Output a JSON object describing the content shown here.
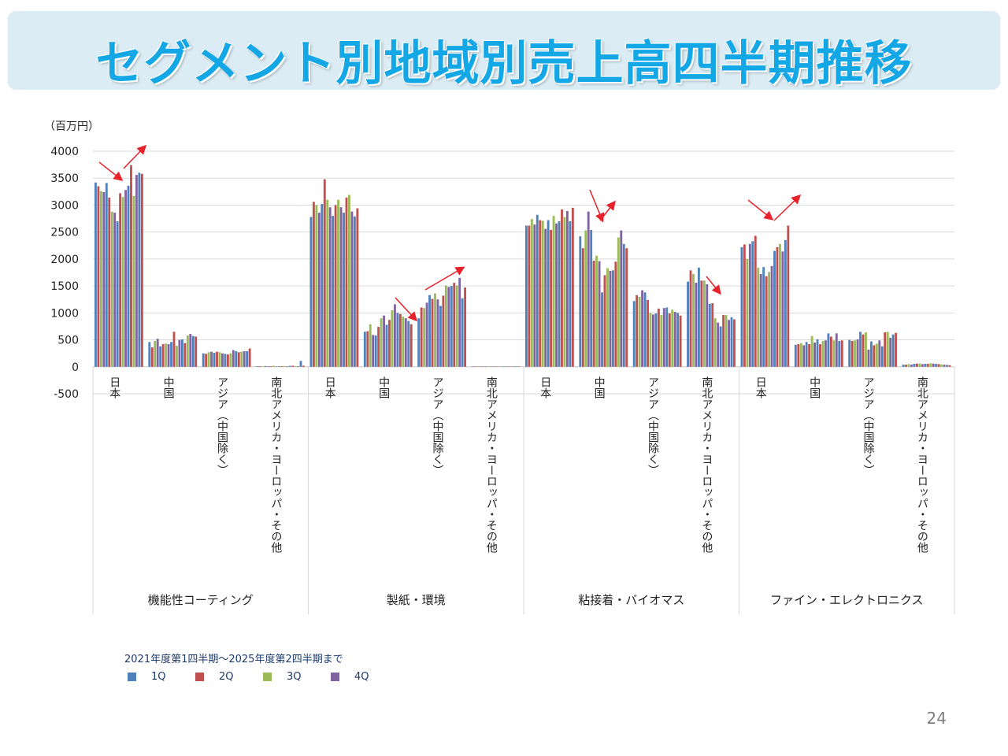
{
  "title": "セグメント別地域別売上高四半期推移",
  "unit": "（百万円）",
  "page_number": "24",
  "legend": {
    "title": "2021年度第1四半期〜2025年度第2四半期まで",
    "items": [
      {
        "label": "1Q",
        "color": "#4f81bd"
      },
      {
        "label": "2Q",
        "color": "#c0504d"
      },
      {
        "label": "3Q",
        "color": "#9bbb59"
      },
      {
        "label": "4Q",
        "color": "#8064a2"
      }
    ]
  },
  "chart_data": {
    "type": "bar",
    "title": "セグメント別地域別売上高四半期推移",
    "ylabel": "（百万円）",
    "ylim": [
      -500,
      4000
    ],
    "yticks": [
      4000,
      3500,
      3000,
      2500,
      2000,
      1500,
      1000,
      500,
      0,
      -500
    ],
    "series_names": [
      "1Q",
      "2Q",
      "3Q",
      "4Q"
    ],
    "series_colors": [
      "#4f81bd",
      "#c0504d",
      "#9bbb59",
      "#8064a2"
    ],
    "period": "FY2021 Q1 – FY2025 Q2 (18 quarters)",
    "segments": [
      {
        "name": "機能性コーティング",
        "regions": [
          {
            "name": "日本",
            "values": [
              3420,
              3350,
              3260,
              3240,
              3410,
              3140,
              2880,
              2860,
              2700,
              3220,
              3150,
              3280,
              3360,
              3740,
              3170,
              3560,
              3600,
              3580
            ]
          },
          {
            "name": "中国",
            "values": [
              460,
              360,
              480,
              520,
              380,
              420,
              430,
              420,
              460,
              650,
              390,
              500,
              510,
              440,
              580,
              610,
              570,
              560
            ]
          },
          {
            "name": "アジア（中国除く）",
            "values": [
              250,
              240,
              270,
              280,
              260,
              280,
              270,
              250,
              240,
              230,
              250,
              310,
              290,
              270,
              280,
              290,
              290,
              340
            ]
          },
          {
            "name": "南北アメリカ・ヨーロッパ・その他",
            "values": [
              10,
              12,
              8,
              15,
              10,
              12,
              20,
              8,
              10,
              12,
              15,
              10,
              18,
              20,
              15,
              12,
              110,
              20
            ]
          }
        ]
      },
      {
        "name": "製紙・環境",
        "regions": [
          {
            "name": "日本",
            "values": [
              2780,
              3060,
              3000,
              2860,
              3020,
              3480,
              3100,
              2960,
              2800,
              3000,
              3100,
              2960,
              2860,
              3140,
              3190,
              2880,
              2790,
              2940
            ]
          },
          {
            "name": "中国",
            "values": [
              650,
              660,
              790,
              590,
              580,
              740,
              900,
              950,
              780,
              870,
              1050,
              1160,
              1000,
              980,
              930,
              900,
              850,
              790
            ]
          },
          {
            "name": "アジア（中国除く）",
            "values": [
              900,
              1100,
              1090,
              1190,
              1330,
              1260,
              1360,
              1250,
              1130,
              1320,
              1510,
              1480,
              1500,
              1560,
              1510,
              1650,
              1270,
              1470
            ]
          },
          {
            "name": "南北アメリカ・ヨーロッパ・その他",
            "values": [
              5,
              5,
              5,
              5,
              5,
              5,
              5,
              5,
              5,
              5,
              5,
              5,
              5,
              5,
              5,
              5,
              5,
              5
            ]
          }
        ]
      },
      {
        "name": "粘接着・バイオマス",
        "regions": [
          {
            "name": "日本",
            "values": [
              2620,
              2620,
              2740,
              2640,
              2820,
              2720,
              2710,
              2560,
              2720,
              2540,
              2800,
              2660,
              2700,
              2920,
              2780,
              2890,
              2700,
              2950
            ]
          },
          {
            "name": "中国",
            "values": [
              2420,
              2200,
              2530,
              2880,
              2540,
              1970,
              2060,
              1960,
              1380,
              1700,
              1830,
              1780,
              1790,
              1950,
              2400,
              2530,
              2280,
              2200
            ]
          },
          {
            "name": "アジア（中国除く）",
            "values": [
              1220,
              1330,
              1300,
              1420,
              1380,
              1240,
              1000,
              970,
              990,
              1080,
              960,
              1090,
              1100,
              990,
              1060,
              1020,
              1000,
              950
            ]
          },
          {
            "name": "南北アメリカ・ヨーロッパ・その他",
            "values": [
              1580,
              1790,
              1720,
              1560,
              1840,
              1600,
              1600,
              1530,
              1170,
              1180,
              900,
              820,
              750,
              960,
              960,
              870,
              920,
              880
            ]
          }
        ]
      },
      {
        "name": "ファイン・エレクトロニクス",
        "regions": [
          {
            "name": "日本",
            "values": [
              2220,
              2270,
              2000,
              2280,
              2330,
              2430,
              1840,
              1720,
              1850,
              1680,
              1760,
              1870,
              2150,
              2220,
              2280,
              2140,
              2350,
              2620
            ]
          },
          {
            "name": "中国",
            "values": [
              410,
              420,
              440,
              400,
              460,
              420,
              570,
              450,
              510,
              420,
              480,
              490,
              620,
              560,
              490,
              620,
              480,
              490
            ]
          },
          {
            "name": "アジア（中国除く）",
            "values": [
              500,
              480,
              490,
              510,
              650,
              600,
              640,
              320,
              470,
              400,
              430,
              490,
              380,
              640,
              650,
              540,
              600,
              630
            ]
          },
          {
            "name": "南北アメリカ・ヨーロッパ・その他",
            "values": [
              40,
              40,
              50,
              40,
              55,
              60,
              60,
              50,
              55,
              55,
              65,
              60,
              55,
              50,
              45,
              40,
              35,
              30
            ]
          }
        ]
      }
    ]
  }
}
